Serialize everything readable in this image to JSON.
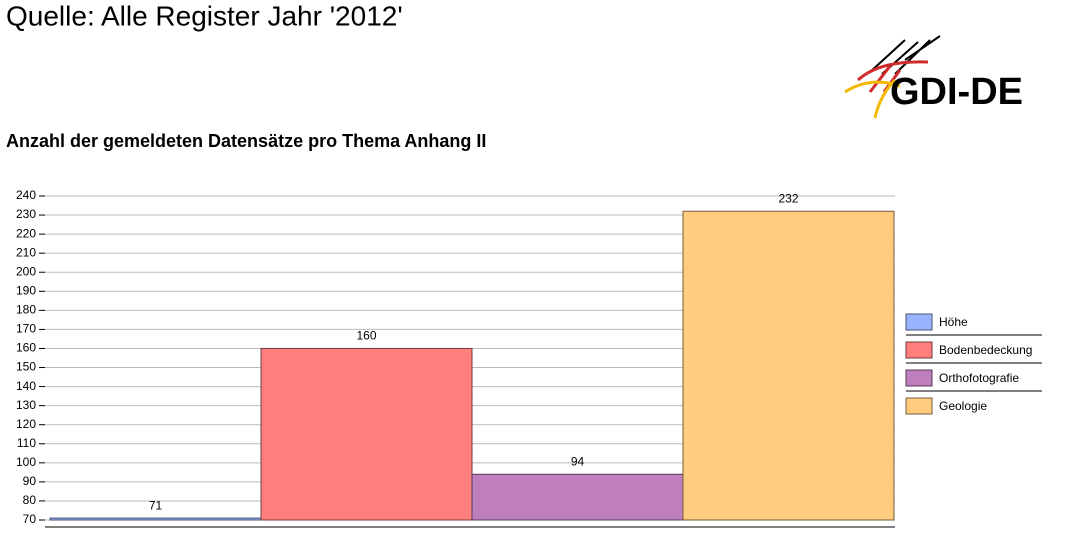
{
  "header": {
    "title": "Quelle: Alle Register Jahr '2012'",
    "logo": "GDI-DE"
  },
  "chart_data": {
    "type": "bar",
    "title": "Anzahl der gemeldeten Datensätze pro Thema Anhang II",
    "series": [
      {
        "name": "Höhe",
        "color": "#99b3ff",
        "values": [
          71
        ]
      },
      {
        "name": "Bodenbedeckung",
        "color": "#ff7f7f",
        "values": [
          160
        ]
      },
      {
        "name": "Orthofotografie",
        "color": "#bf7fbf",
        "values": [
          94
        ]
      },
      {
        "name": "Geologie",
        "color": "#ffcc80",
        "values": [
          232
        ]
      }
    ],
    "ylim": [
      70,
      240
    ],
    "yticks": [
      70,
      80,
      90,
      100,
      110,
      120,
      130,
      140,
      150,
      160,
      170,
      180,
      190,
      200,
      210,
      220,
      230,
      240
    ],
    "grid": true,
    "legend": "right"
  }
}
